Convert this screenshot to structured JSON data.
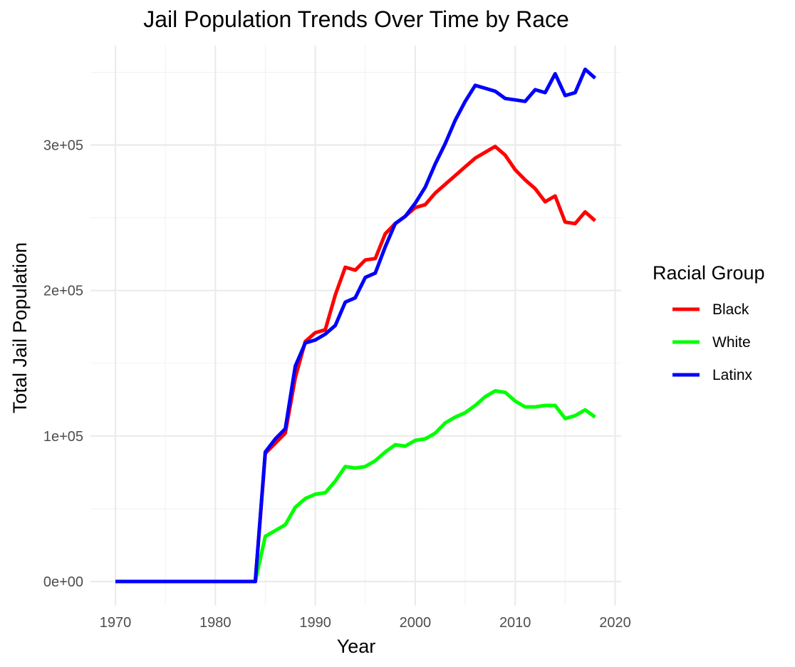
{
  "chart_data": {
    "type": "line",
    "title": "Jail Population Trends Over Time by Race",
    "xlabel": "Year",
    "ylabel": "Total Jail Population",
    "xlim": [
      1970,
      2018
    ],
    "ylim": [
      0,
      350000
    ],
    "x_ticks": [
      1970,
      1980,
      1990,
      2000,
      2010,
      2020
    ],
    "y_ticks": [
      0,
      100000,
      200000,
      300000
    ],
    "y_tick_labels": [
      "0e+00",
      "1e+05",
      "2e+05",
      "3e+05"
    ],
    "grid": true,
    "legend": {
      "title": "Racial Group",
      "position": "right"
    },
    "x": [
      1970,
      1971,
      1972,
      1973,
      1974,
      1975,
      1976,
      1977,
      1978,
      1979,
      1980,
      1981,
      1982,
      1983,
      1984,
      1985,
      1986,
      1987,
      1988,
      1989,
      1990,
      1991,
      1992,
      1993,
      1994,
      1995,
      1996,
      1997,
      1998,
      1999,
      2000,
      2001,
      2002,
      2003,
      2004,
      2005,
      2006,
      2007,
      2008,
      2009,
      2010,
      2011,
      2012,
      2013,
      2014,
      2015,
      2016,
      2017,
      2018
    ],
    "series": [
      {
        "name": "Black",
        "color": "#ff0000",
        "values": [
          0,
          0,
          0,
          0,
          0,
          0,
          0,
          0,
          0,
          0,
          0,
          0,
          0,
          0,
          0,
          88000,
          95000,
          102000,
          140000,
          165000,
          171000,
          173000,
          197000,
          216000,
          214000,
          221000,
          222000,
          239000,
          246000,
          251000,
          257000,
          259000,
          267000,
          273000,
          279000,
          285000,
          291000,
          295000,
          299000,
          293000,
          283000,
          276000,
          270000,
          261000,
          265000,
          247000,
          246000,
          254000,
          248000
        ]
      },
      {
        "name": "White",
        "color": "#00ff00",
        "values": [
          0,
          0,
          0,
          0,
          0,
          0,
          0,
          0,
          0,
          0,
          0,
          0,
          0,
          0,
          0,
          31000,
          35000,
          39000,
          51000,
          57000,
          60000,
          61000,
          69000,
          79000,
          78000,
          79000,
          83000,
          89000,
          94000,
          93000,
          97000,
          98000,
          102000,
          109000,
          113000,
          116000,
          121000,
          127000,
          131000,
          130000,
          124000,
          120000,
          120000,
          121000,
          121000,
          112000,
          114000,
          118000,
          113000
        ]
      },
      {
        "name": "Latinx",
        "color": "#0000ff",
        "values": [
          0,
          0,
          0,
          0,
          0,
          0,
          0,
          0,
          0,
          0,
          0,
          0,
          0,
          0,
          0,
          89000,
          98000,
          105000,
          148000,
          164000,
          166000,
          170000,
          176000,
          192000,
          195000,
          209000,
          212000,
          230000,
          246000,
          251000,
          260000,
          271000,
          287000,
          301000,
          317000,
          330000,
          341000,
          339000,
          337000,
          332000,
          331000,
          330000,
          338000,
          336000,
          349000,
          334000,
          336000,
          352000,
          346000
        ]
      }
    ]
  }
}
